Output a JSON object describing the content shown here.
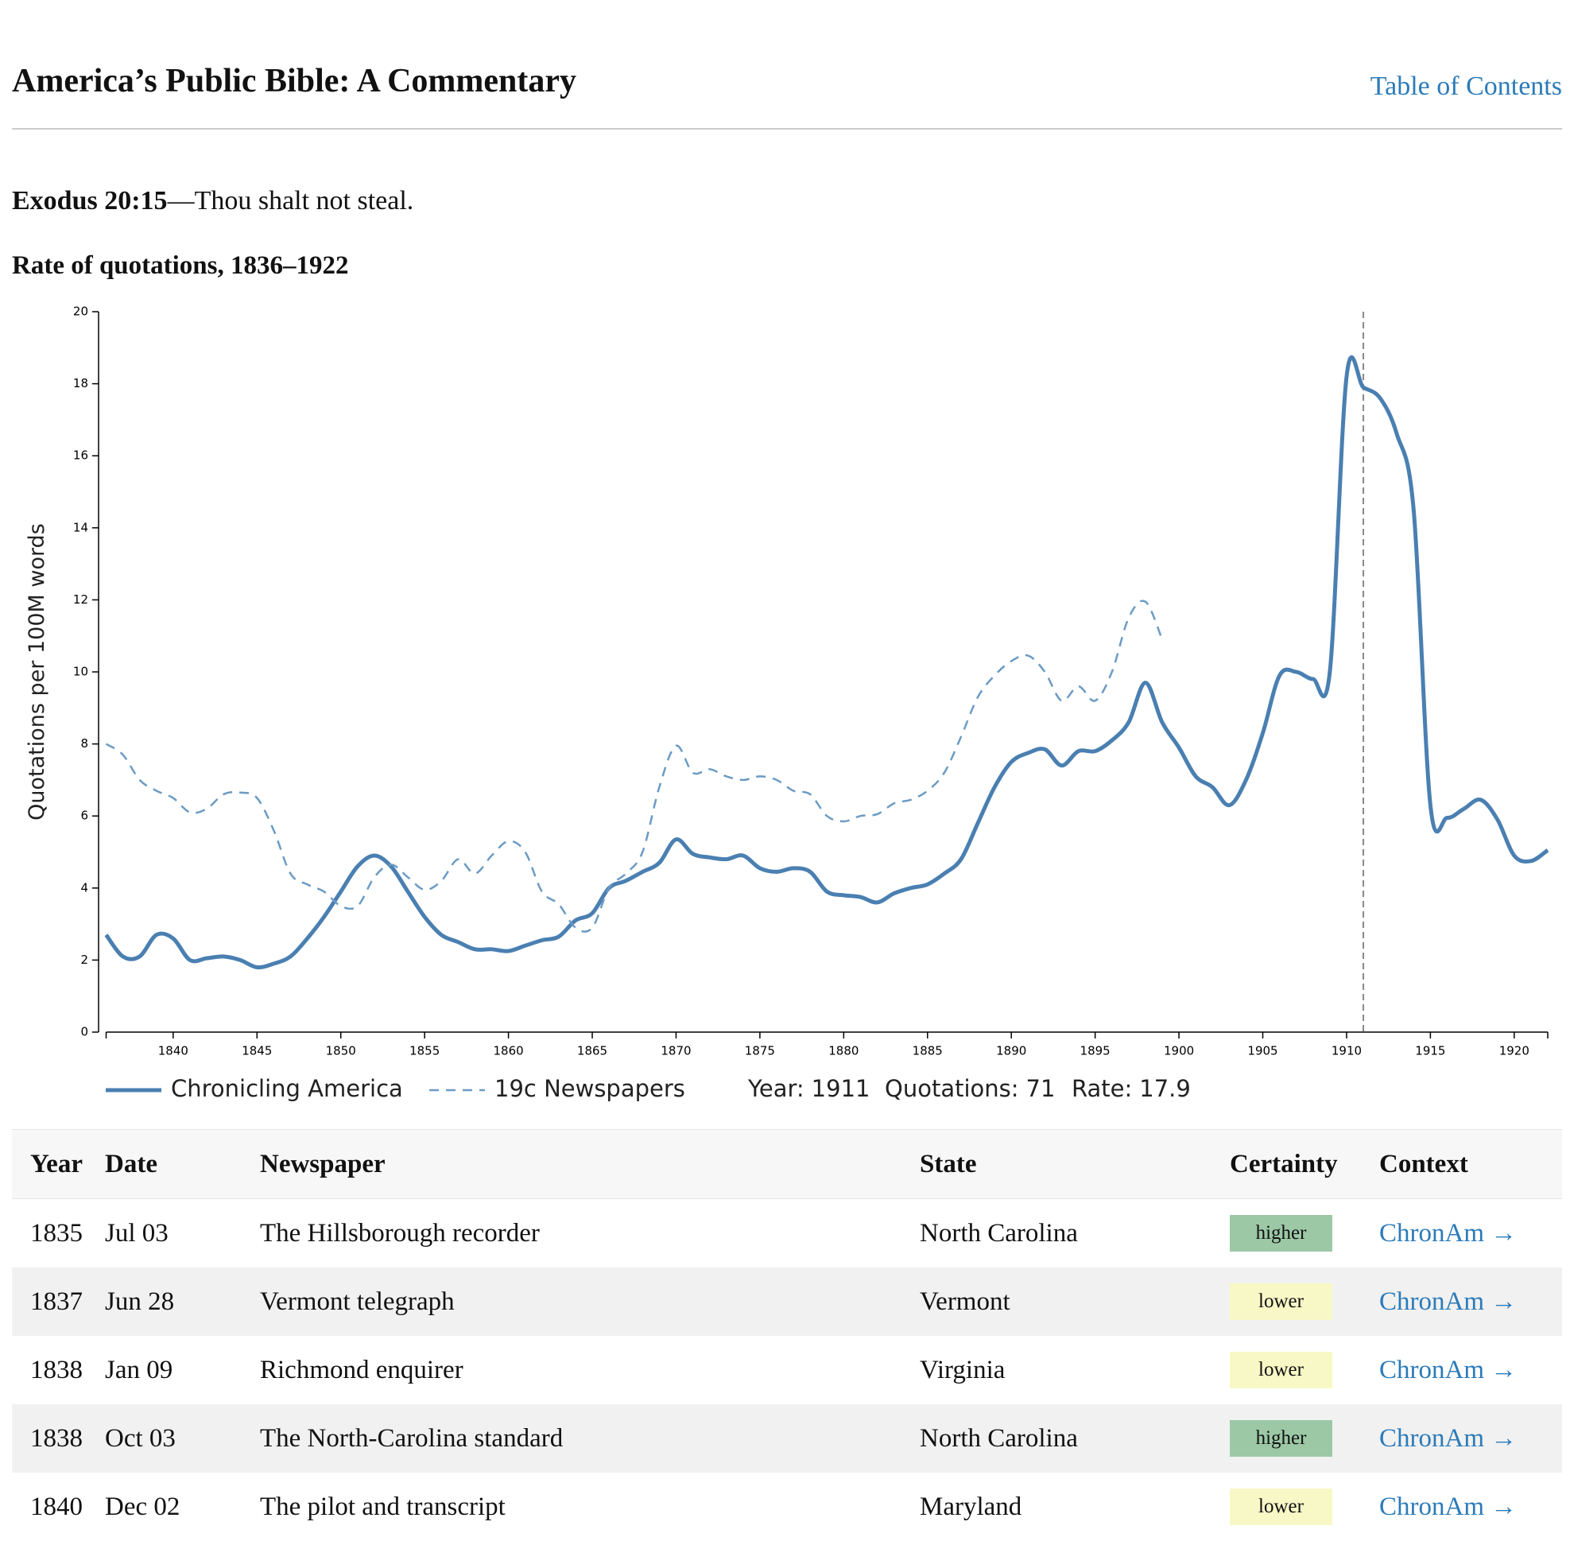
{
  "header": {
    "title": "America’s Public Bible: A Commentary",
    "nav_link": "Table of Contents"
  },
  "verse": {
    "reference": "Exodus 20:15",
    "text": "—Thou shalt not steal."
  },
  "chart_data": {
    "type": "line",
    "title": "Rate of quotations, 1836–1922",
    "y_label": "Quotations per 100M words",
    "x": [
      1836,
      1837,
      1838,
      1839,
      1840,
      1841,
      1842,
      1843,
      1844,
      1845,
      1846,
      1847,
      1848,
      1849,
      1850,
      1851,
      1852,
      1853,
      1854,
      1855,
      1856,
      1857,
      1858,
      1859,
      1860,
      1861,
      1862,
      1863,
      1864,
      1865,
      1866,
      1867,
      1868,
      1869,
      1870,
      1871,
      1872,
      1873,
      1874,
      1875,
      1876,
      1877,
      1878,
      1879,
      1880,
      1881,
      1882,
      1883,
      1884,
      1885,
      1886,
      1887,
      1888,
      1889,
      1890,
      1891,
      1892,
      1893,
      1894,
      1895,
      1896,
      1897,
      1898,
      1899,
      1900,
      1901,
      1902,
      1903,
      1904,
      1905,
      1906,
      1907,
      1908,
      1909,
      1910,
      1911,
      1912,
      1913,
      1914,
      1915,
      1916,
      1917,
      1918,
      1919,
      1920,
      1921,
      1922
    ],
    "series": [
      {
        "name": "Chronicling America",
        "color": "#4a7fb1",
        "dashed": false,
        "values": [
          2.7,
          2.1,
          2.1,
          2.7,
          2.6,
          2.0,
          2.05,
          2.1,
          2.0,
          1.8,
          1.9,
          2.1,
          2.6,
          3.2,
          3.9,
          4.6,
          4.9,
          4.6,
          3.9,
          3.2,
          2.7,
          2.5,
          2.3,
          2.3,
          2.25,
          2.4,
          2.55,
          2.65,
          3.1,
          3.3,
          4.0,
          4.2,
          4.45,
          4.7,
          5.35,
          4.95,
          4.85,
          4.8,
          4.9,
          4.55,
          4.45,
          4.55,
          4.45,
          3.9,
          3.8,
          3.75,
          3.6,
          3.85,
          4.0,
          4.1,
          4.4,
          4.8,
          5.8,
          6.8,
          7.5,
          7.75,
          7.85,
          7.4,
          7.8,
          7.8,
          8.1,
          8.6,
          9.7,
          8.6,
          7.9,
          7.1,
          6.8,
          6.3,
          7.0,
          8.3,
          9.9,
          10.0,
          9.8,
          10.0,
          18.2,
          17.9,
          17.6,
          16.6,
          14.5,
          6.3,
          5.95,
          6.2,
          6.45,
          5.9,
          4.9,
          4.75,
          5.05
        ]
      },
      {
        "name": "19c Newspapers",
        "color": "#6b9bc4",
        "dashed": true,
        "values": [
          8.0,
          7.7,
          7.0,
          6.7,
          6.5,
          6.1,
          6.2,
          6.6,
          6.65,
          6.5,
          5.6,
          4.4,
          4.1,
          3.9,
          3.5,
          3.5,
          4.3,
          4.65,
          4.3,
          3.95,
          4.2,
          4.8,
          4.4,
          4.9,
          5.3,
          5.0,
          3.9,
          3.55,
          2.9,
          2.9,
          4.0,
          4.4,
          5.0,
          6.8,
          7.95,
          7.2,
          7.3,
          7.1,
          7.0,
          7.1,
          7.0,
          6.7,
          6.6,
          6.0,
          5.85,
          6.0,
          6.05,
          6.35,
          6.45,
          6.7,
          7.2,
          8.2,
          9.3,
          9.9,
          10.3,
          10.45,
          10.0,
          9.2,
          9.6,
          9.2,
          10.0,
          11.5,
          11.95,
          10.9,
          null,
          null,
          null,
          null,
          null,
          null,
          null,
          null,
          null,
          null,
          null,
          null,
          null,
          null,
          null,
          null,
          null,
          null,
          null,
          null,
          null,
          null,
          null
        ]
      }
    ],
    "xlim": [
      1836,
      1922
    ],
    "xticks": [
      1840,
      1845,
      1850,
      1855,
      1860,
      1865,
      1870,
      1875,
      1880,
      1885,
      1890,
      1895,
      1900,
      1905,
      1910,
      1915,
      1920
    ],
    "ylim": [
      0,
      20
    ],
    "yticks": [
      0,
      2,
      4,
      6,
      8,
      10,
      12,
      14,
      16,
      18,
      20
    ],
    "grid": false,
    "readout": [
      {
        "label": "Year:",
        "value": 1911
      },
      {
        "label": "Quotations:",
        "value": 71
      },
      {
        "label": "Rate:",
        "value": 17.9
      }
    ]
  },
  "table": {
    "columns": [
      "Year",
      "Date",
      "Newspaper",
      "State",
      "Certainty",
      "Context"
    ],
    "rows": [
      [
        1835,
        "Jul 03",
        "The Hillsborough recorder",
        "North Carolina",
        "higher",
        "ChronAm →"
      ],
      [
        1837,
        "Jun 28",
        "Vermont telegraph",
        "Vermont",
        "lower",
        "ChronAm →"
      ],
      [
        1838,
        "Jan 09",
        "Richmond enquirer",
        "Virginia",
        "lower",
        "ChronAm →"
      ],
      [
        1838,
        "Oct 03",
        "The North-Carolina standard",
        "North Carolina",
        "higher",
        "ChronAm →"
      ],
      [
        1840,
        "Dec 02",
        "The pilot and transcript",
        "Maryland",
        "lower",
        "ChronAm →"
      ]
    ],
    "certainty_colors": {
      "higher": "#9cc8a6",
      "lower": "#f8f8c6"
    }
  }
}
